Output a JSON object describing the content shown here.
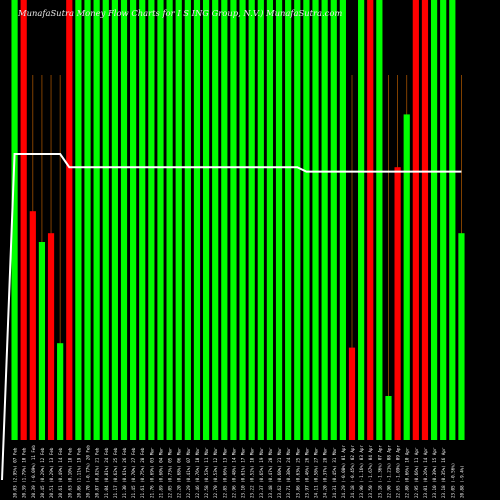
{
  "chart_data": {
    "type": "bar",
    "title": "MunafaSutra  Money Flow  Charts for I                          S                          ING Group, N.V.) MunafaSutra.com",
    "colors": {
      "up": "#00ff00",
      "down": "#ff0000",
      "line": "#ffffff",
      "ticks": "#a05000",
      "background": "#000000",
      "label": "#ffffff"
    },
    "ylim": [
      0,
      100
    ],
    "grid": false,
    "legend": "none",
    "categories": [
      "2025-02-05",
      "2025-02-06",
      "2025-02-07",
      "2025-02-10",
      "2025-02-11",
      "2025-02-12",
      "2025-02-13",
      "2025-02-14",
      "2025-02-18",
      "2025-02-19",
      "2025-02-20",
      "2025-02-21",
      "2025-02-24",
      "2025-02-25",
      "2025-02-26",
      "2025-02-27",
      "2025-02-28",
      "2025-03-03",
      "2025-03-04",
      "2025-03-05",
      "2025-03-06",
      "2025-03-07",
      "2025-03-10",
      "2025-03-11",
      "2025-03-12",
      "2025-03-13",
      "2025-03-14",
      "2025-03-17",
      "2025-03-18",
      "2025-03-19",
      "2025-03-20",
      "2025-03-21",
      "2025-03-24",
      "2025-03-25",
      "2025-03-26",
      "2025-03-27",
      "2025-03-28",
      "2025-03-31",
      "2025-04-01",
      "2025-04-02",
      "2025-04-03",
      "2025-04-04",
      "2025-04-07",
      "2025-04-08",
      "2025-04-09",
      "2025-04-10",
      "2025-04-11",
      "2025-04-14",
      "2025-04-15",
      "2025-04-16"
    ],
    "tick_labels": [
      "20.03 (2.95%) 07 Feb",
      "20.39 (1.79%) 10 Feb",
      "20.39 (-0.09%) 11 Feb",
      "20.45 (0.29%) 12 Feb",
      "20.51 (0.29%) 13 Feb",
      "20.61 (0.49%) 14 Feb",
      "20.63 (0.10%) 18 Feb",
      "20.86 (1.11%) 19 Feb",
      "20.70 (-0.77%) 20 Feb",
      "20.87 (0.82%) 21 Feb",
      "21.04 (0.81%) 24 Feb",
      "21.17 (0.62%) 25 Feb",
      "21.30 (0.61%) 26 Feb",
      "21.45 (0.70%) 27 Feb",
      "21.61 (0.75%) 28 Feb",
      "21.76 (0.69%) 03 Mar",
      "21.89 (0.60%) 04 Mar",
      "22.05 (0.73%) 05 Mar",
      "22.20 (0.68%) 06 Mar",
      "22.29 (0.41%) 07 Mar",
      "22.46 (0.76%) 10 Mar",
      "22.58 (0.53%) 11 Mar",
      "22.70 (0.53%) 12 Mar",
      "22.85 (0.66%) 13 Mar",
      "22.96 (0.48%) 14 Mar",
      "23.10 (0.61%) 17 Mar",
      "23.22 (0.52%) 18 Mar",
      "23.37 (0.65%) 19 Mar",
      "23.48 (0.47%) 20 Mar",
      "23.62 (0.60%) 21 Mar",
      "23.71 (0.38%) 24 Mar",
      "23.86 (0.63%) 25 Mar",
      "23.97 (0.46%) 26 Mar",
      "24.11 (0.58%) 27 Mar",
      "24.20 (0.37%) 28 Mar",
      "24.31 (0.45%) 31 Mar",
      "24.29 (-0.08%) 01 Apr",
      "24.18 (-0.45%) 02 Apr",
      "23.90 (-1.16%) 03 Apr",
      "23.50 (-1.67%) 04 Apr",
      "23.18 (-1.36%) 07 Apr",
      "22.90 (-1.21%) 08 Apr",
      "22.65 (-1.09%) 09 Apr",
      "22.80 (0.66%) 10 Apr",
      "22.95 (0.66%) 11 Apr",
      "23.01 (0.26%) 14 Apr",
      "23.10 (0.39%) 15 Apr",
      "23.18 (0.35%) 16 Apr",
      "23.05 (-0.56%)",
      "20.88 (-9.4%)"
    ],
    "bar_colors": [
      "up",
      "down",
      "down",
      "up",
      "down",
      "up",
      "down",
      "up",
      "up",
      "up",
      "up",
      "up",
      "up",
      "up",
      "up",
      "up",
      "up",
      "up",
      "up",
      "up",
      "up",
      "up",
      "up",
      "up",
      "up",
      "up",
      "up",
      "up",
      "up",
      "up",
      "up",
      "up",
      "up",
      "up",
      "up",
      "up",
      "up",
      "down",
      "up",
      "down",
      "up",
      "up",
      "down",
      "up",
      "down",
      "down",
      "up",
      "up",
      "up",
      "up"
    ],
    "values": [
      100,
      100,
      52,
      45,
      47,
      22,
      100,
      100,
      100,
      100,
      100,
      100,
      100,
      100,
      100,
      100,
      100,
      100,
      100,
      100,
      100,
      100,
      100,
      100,
      100,
      100,
      100,
      100,
      100,
      100,
      100,
      100,
      100,
      100,
      100,
      100,
      100,
      21,
      100,
      100,
      100,
      10,
      62,
      74,
      100,
      100,
      100,
      100,
      100,
      47
    ],
    "line_values": [
      65,
      65,
      65,
      65,
      65,
      65,
      62,
      62,
      62,
      62,
      62,
      62,
      62,
      62,
      62,
      62,
      62,
      62,
      62,
      62,
      62,
      62,
      62,
      62,
      62,
      62,
      62,
      62,
      62,
      62,
      62,
      62,
      61,
      61,
      61,
      61,
      61,
      61,
      61,
      61,
      61,
      61,
      61,
      61,
      61,
      61,
      61,
      61,
      61,
      61
    ]
  }
}
